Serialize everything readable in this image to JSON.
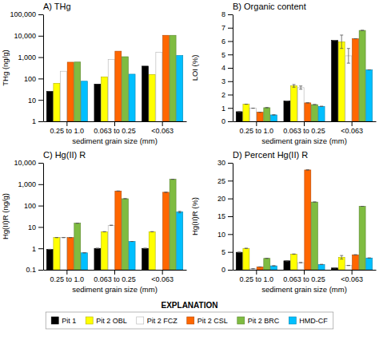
{
  "chart_data": [
    {
      "type": "bar",
      "title": "A) THg",
      "x_label": "sediment grain size (mm)",
      "y_label": "THg (ng/g)",
      "categories": [
        "0.25 to 1.0",
        "0.063 to 0.25",
        "<0.063"
      ],
      "series": [
        {
          "name": "Pit 1",
          "color": "#000000",
          "values": [
            25,
            55,
            380
          ]
        },
        {
          "name": "Pit 2 OBL",
          "color": "#ffff00",
          "values": [
            60,
            120,
            155
          ]
        },
        {
          "name": "Pit 2 FCZ",
          "color": "#ffffff",
          "values": [
            220,
            780,
            1700
          ]
        },
        {
          "name": "Pit 2 CSL",
          "color": "#ff6600",
          "values": [
            580,
            1900,
            10500
          ]
        },
        {
          "name": "Pit 2 BRC",
          "color": "#7fbc41",
          "values": [
            590,
            1050,
            10500
          ]
        },
        {
          "name": "HMD-CF",
          "color": "#00bfff",
          "values": [
            75,
            160,
            1200
          ]
        }
      ],
      "log": "y",
      "ylim": [
        1,
        100000
      ],
      "yticks": [
        1,
        10,
        100,
        {
          "value": 1000,
          "label": "1,000"
        },
        {
          "value": 10000,
          "label": "10,000"
        },
        {
          "value": 100000,
          "label": "100,000"
        }
      ],
      "grid": false,
      "legend": "bottom",
      "legend_title": "EXPLANATION"
    },
    {
      "type": "bar",
      "title": "B) Organic content",
      "x_label": "sediment grain size (mm)",
      "y_label": "LOI (%)",
      "categories": [
        "0.25 to 1.0",
        "0.063 to 0.25",
        "<0.063"
      ],
      "series": [
        {
          "name": "Pit 1",
          "color": "#000000",
          "values": [
            0.72,
            1.52,
            6.05
          ],
          "errors": [
            0,
            0,
            0
          ]
        },
        {
          "name": "Pit 2 OBL",
          "color": "#ffff00",
          "values": [
            1.28,
            2.65,
            5.95
          ],
          "errors": [
            0,
            0.1,
            0.5
          ]
        },
        {
          "name": "Pit 2 FCZ",
          "color": "#ffffff",
          "values": [
            0.98,
            2.52,
            4.9
          ],
          "errors": [
            0,
            0.12,
            0.55
          ]
        },
        {
          "name": "Pit 2 CSL",
          "color": "#ff6600",
          "values": [
            0.68,
            1.38,
            6.18
          ],
          "errors": [
            0,
            0,
            0
          ]
        },
        {
          "name": "Pit 2 BRC",
          "color": "#7fbc41",
          "values": [
            1.02,
            1.25,
            6.8
          ],
          "errors": [
            0,
            0,
            0
          ]
        },
        {
          "name": "HMD-CF",
          "color": "#00bfff",
          "values": [
            0.48,
            1.12,
            3.85
          ],
          "errors": [
            0,
            0,
            0
          ]
        }
      ],
      "ylim": [
        0,
        8
      ],
      "yticks": [
        0,
        1,
        2,
        3,
        4,
        5,
        6,
        7,
        8
      ],
      "grid": false
    },
    {
      "type": "bar",
      "title": "C) Hg(II) R",
      "x_label": "sediment grain size (mm)",
      "y_label": "Hg(II)R (ng/g)",
      "categories": [
        "0.25 to 1.0",
        "0.063 to 0.25",
        "<0.063"
      ],
      "series": [
        {
          "name": "Pit 1",
          "color": "#000000",
          "values": [
            0.9,
            1.0,
            1.0
          ],
          "errors": [
            0,
            0,
            0
          ]
        },
        {
          "name": "Pit 2 OBL",
          "color": "#ffff00",
          "values": [
            3.2,
            6.0,
            6.0
          ],
          "errors": [
            0,
            0,
            0
          ]
        },
        {
          "name": "Pit 2 FCZ",
          "color": "#ffffff",
          "values": [
            3.2,
            12.0,
            null
          ],
          "errors": [
            0,
            0,
            0
          ]
        },
        {
          "name": "Pit 2 CSL",
          "color": "#ff6600",
          "values": [
            3.2,
            480,
            420
          ],
          "errors": [
            0,
            0,
            0
          ]
        },
        {
          "name": "Pit 2 BRC",
          "color": "#7fbc41",
          "values": [
            15,
            210,
            1700
          ],
          "errors": [
            0,
            0,
            0
          ]
        },
        {
          "name": "HMD-CF",
          "color": "#00bfff",
          "values": [
            0.62,
            2.1,
            50
          ],
          "errors": [
            0,
            0,
            4
          ]
        }
      ],
      "log": "y",
      "ylim": [
        0.1,
        10000
      ],
      "yticks": [
        0.1,
        1,
        10,
        100,
        {
          "value": 1000,
          "label": "1,000"
        },
        {
          "value": 10000,
          "label": "10,000"
        }
      ],
      "grid": false
    },
    {
      "type": "bar",
      "title": "D) Percent Hg(II) R",
      "x_label": "sediment grain size (mm)",
      "y_label": "Hg(II)R (%)",
      "categories": [
        "0.25 to 1.0",
        "0.063 to 0.25",
        "<0.063"
      ],
      "series": [
        {
          "name": "Pit 1",
          "color": "#000000",
          "values": [
            4.9,
            2.5,
            0.5
          ],
          "errors": [
            0,
            0,
            0
          ]
        },
        {
          "name": "Pit 2 OBL",
          "color": "#ffff00",
          "values": [
            6.0,
            4.4,
            3.5
          ],
          "errors": [
            0,
            0,
            0.5
          ]
        },
        {
          "name": "Pit 2 FCZ",
          "color": "#ffffff",
          "values": [
            0.3,
            2.0,
            1.2
          ],
          "errors": [
            0,
            0,
            0
          ]
        },
        {
          "name": "Pit 2 CSL",
          "color": "#ff6600",
          "values": [
            0.8,
            28.0,
            4.2
          ],
          "errors": [
            0,
            0,
            0
          ]
        },
        {
          "name": "Pit 2 BRC",
          "color": "#7fbc41",
          "values": [
            3.2,
            19.0,
            17.8
          ],
          "errors": [
            0,
            0,
            0
          ]
        },
        {
          "name": "HMD-CF",
          "color": "#00bfff",
          "values": [
            1.1,
            1.5,
            3.3
          ],
          "errors": [
            0,
            0,
            0
          ]
        }
      ],
      "ylim": [
        0,
        30
      ],
      "yticks": [
        0,
        5,
        10,
        15,
        20,
        25,
        30
      ],
      "grid": false
    }
  ]
}
